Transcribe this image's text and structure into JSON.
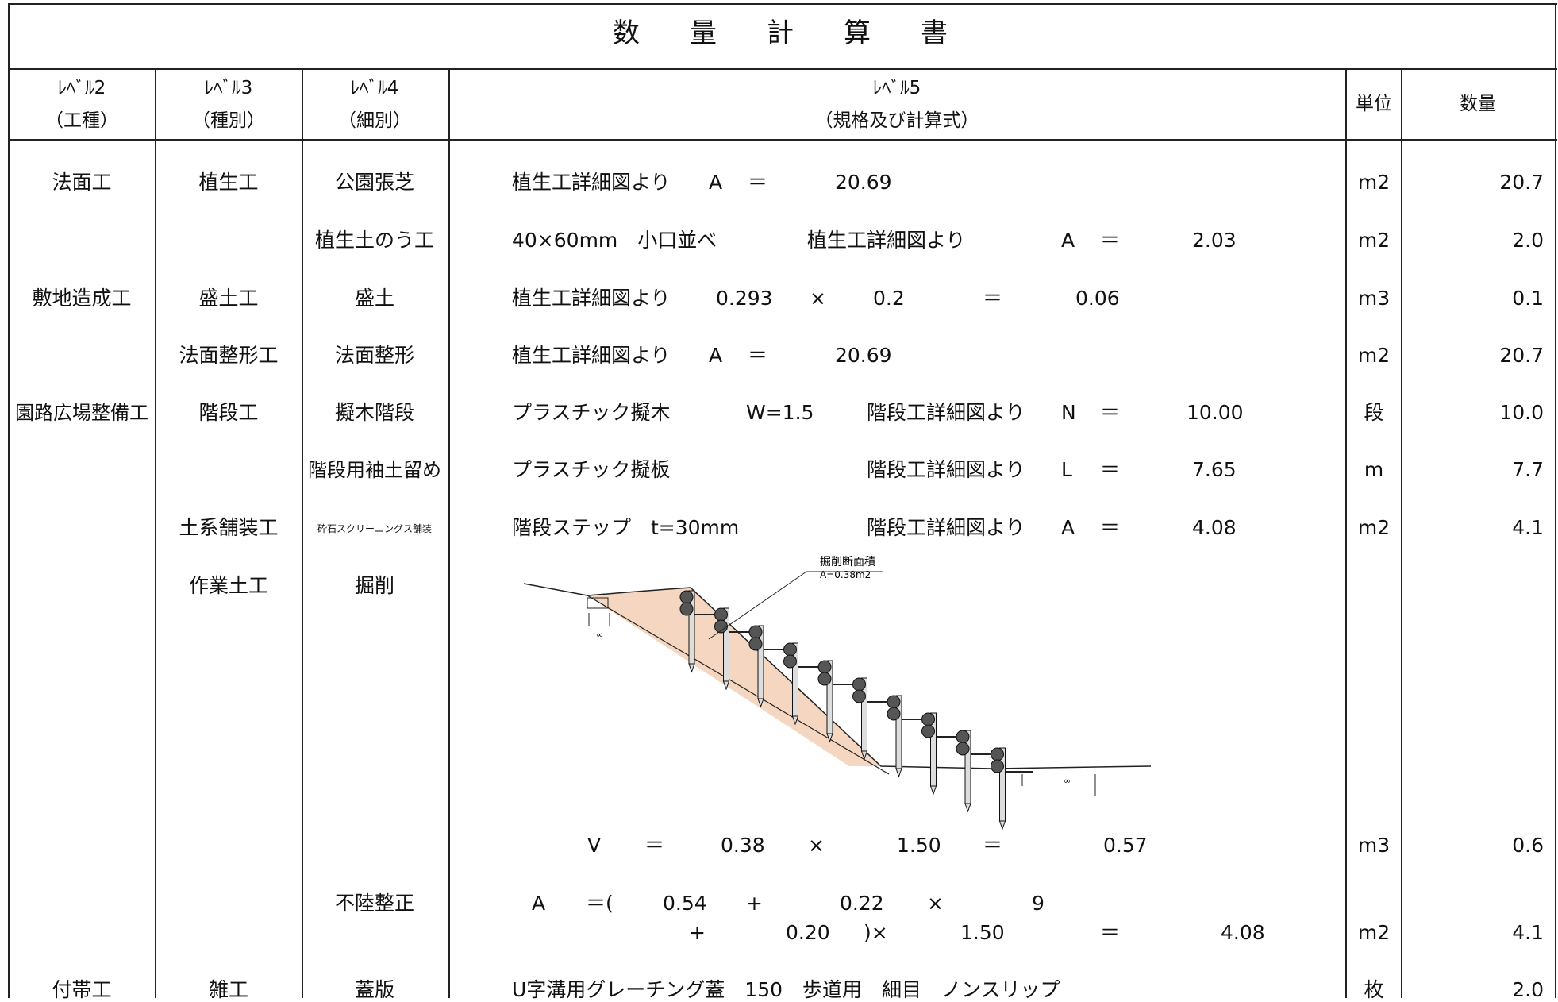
{
  "title": [
    "数",
    "量",
    "計",
    "算",
    "書"
  ],
  "header": {
    "level2": "ﾚﾍﾞﾙ2",
    "level2_sub": "（工種）",
    "level3": "ﾚﾍﾞﾙ3",
    "level3_sub": "（種別）",
    "level4": "ﾚﾍﾞﾙ4",
    "level4_sub": "（細別）",
    "level5": "ﾚﾍﾞﾙ5",
    "level5_sub": "（規格及び計算式）",
    "unit": "単位",
    "qty": "数量"
  },
  "rows": [
    {
      "l2": "法面工",
      "l3": "植生工",
      "l4": "公園張芝",
      "f": [
        "植生工詳細図より",
        "A",
        "＝",
        "20.69"
      ],
      "unit": "m2",
      "qty": "20.7"
    },
    {
      "l2": "",
      "l3": "",
      "l4": "植生土のう工",
      "f": [
        "40×60mm　小口並べ",
        "植生工詳細図より",
        "A",
        "＝",
        "2.03"
      ],
      "unit": "m2",
      "qty": "2.0"
    },
    {
      "l2": "敷地造成工",
      "l3": "盛土工",
      "l4": "盛土",
      "f": [
        "植生工詳細図より",
        "0.293",
        "×",
        "0.2",
        "＝",
        "0.06"
      ],
      "unit": "m3",
      "qty": "0.1"
    },
    {
      "l2": "",
      "l3": "法面整形工",
      "l4": "法面整形",
      "f": [
        "植生工詳細図より",
        "A",
        "＝",
        "20.69"
      ],
      "unit": "m2",
      "qty": "20.7"
    },
    {
      "l2": "園路広場整備工",
      "l3": "階段工",
      "l4": "擬木階段",
      "f": [
        "プラスチック擬木",
        "W=1.5",
        "階段工詳細図より",
        "N",
        "＝",
        "10.00"
      ],
      "unit": "段",
      "qty": "10.0"
    },
    {
      "l2": "",
      "l3": "",
      "l4": "階段用袖土留め",
      "f": [
        "プラスチック擬板",
        "階段工詳細図より",
        "L",
        "＝",
        "7.65"
      ],
      "unit": "m",
      "qty": "7.7"
    },
    {
      "l2": "",
      "l3": "土系舗装工",
      "l4": "砕石スクリーニングス舗装",
      "f": [
        "階段ステップ　t=30mm",
        "階段工詳細図より",
        "A",
        "＝",
        "4.08"
      ],
      "unit": "m2",
      "qty": "4.1"
    },
    {
      "l2": "",
      "l3": "作業土工",
      "l4": "掘削",
      "f": [],
      "unit": "",
      "qty": ""
    }
  ],
  "diagram": {
    "label_line1": "掘削断面積",
    "label_line2": "A=0.38m2",
    "mark_left": "∞",
    "mark_right": "∞"
  },
  "excavation_formula": [
    "V",
    "＝",
    "0.38",
    "×",
    "1.50",
    "＝",
    "0.57"
  ],
  "excavation_unit": "m3",
  "excavation_qty": "0.6",
  "unevenness": {
    "l4": "不陸整正",
    "line1": [
      "A",
      "＝(",
      "0.54",
      "+",
      "0.22",
      "×",
      "9"
    ],
    "line2": [
      "+",
      "0.20",
      ")×",
      "1.50",
      "＝",
      "4.08"
    ],
    "unit": "m2",
    "qty": "4.1"
  },
  "last_row": {
    "l2": "付帯工",
    "l3": "雑工",
    "l4": "蓋版",
    "f": "U字溝用グレーチング蓋　150　歩道用　細目　ノンスリップ",
    "unit": "枚",
    "qty": "2.0"
  },
  "colors": {
    "excavation_fill": "#f5d6c0",
    "line": "#222222"
  }
}
